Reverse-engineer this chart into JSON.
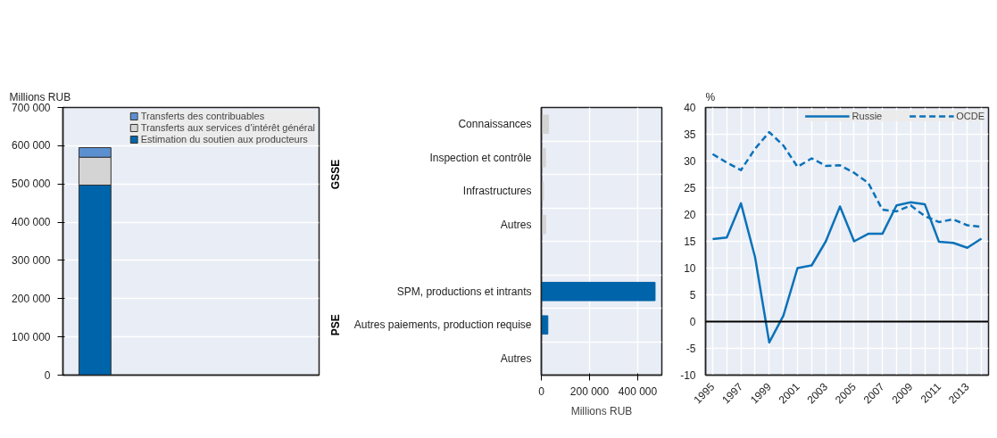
{
  "chart_data": [
    {
      "type": "bar",
      "stacked": true,
      "categories": [
        null
      ],
      "ylabel": "Millions RUB",
      "ylim": [
        0,
        700000
      ],
      "yticks": [
        {
          "value": 0,
          "label": "0"
        },
        {
          "value": 100000,
          "label": "100 000"
        },
        {
          "value": 200000,
          "label": "200 000"
        },
        {
          "value": 300000,
          "label": "300 000"
        },
        {
          "value": 400000,
          "label": "400 000"
        },
        {
          "value": 500000,
          "label": "500 000"
        },
        {
          "value": 600000,
          "label": "600 000"
        },
        {
          "value": 700000,
          "label": "700 000"
        }
      ],
      "grid": "y",
      "legend": "top right",
      "tick_labels": "y",
      "series": [
        {
          "name": "Estimation du soutien aux producteurs",
          "color": "#0064ab",
          "values": [
            497000
          ]
        },
        {
          "name": "Transferts aux services d’intérêt général",
          "color": "#d4d4d4",
          "values": [
            73000
          ]
        },
        {
          "name": "Transferts des contribuables",
          "color": "#5b8fd0",
          "values": [
            25000
          ]
        }
      ]
    },
    {
      "type": "bar",
      "orientation": "horizontal",
      "categories": [
        "Connaissances",
        "Inspection et contrôle",
        "Infrastructures",
        "Autres",
        null,
        "SPM, productions et intrants",
        "Autres paiements, production requise",
        "Autres"
      ],
      "values": [
        30000,
        17000,
        9000,
        18000,
        null,
        472000,
        27000,
        0
      ],
      "colors": [
        "#d4d4d4",
        "#d4d4d4",
        "#d4d4d4",
        "#d4d4d4",
        null,
        "#0064ab",
        "#0064ab",
        "#0064ab"
      ],
      "xlabel": "Millions RUB",
      "xlim": [
        0,
        500000
      ],
      "xticks": [
        {
          "value": 0,
          "label": "0"
        },
        {
          "value": 200000,
          "label": "200 000"
        },
        {
          "value": 400000,
          "label": "400 000"
        }
      ],
      "grid": true,
      "annotations": [
        "GSSE",
        "PSE"
      ]
    },
    {
      "type": "line",
      "ylabel": "%",
      "ylim": [
        -10,
        40
      ],
      "yticks": [
        -10,
        -5,
        0,
        5,
        10,
        15,
        20,
        25,
        30,
        35,
        40
      ],
      "xlim": [
        1994.5,
        2014.5
      ],
      "xticks": [
        1995,
        {
          "value": 1996,
          "label": null
        },
        1997,
        {
          "value": 1998,
          "label": null
        },
        1999,
        {
          "value": 2000,
          "label": null
        },
        2001,
        {
          "value": 2002,
          "label": null
        },
        2003,
        {
          "value": 2004,
          "label": null
        },
        2005,
        {
          "value": 2006,
          "label": null
        },
        2007,
        {
          "value": 2008,
          "label": null
        },
        2009,
        {
          "value": 2010,
          "label": null
        },
        2011,
        {
          "value": 2012,
          "label": null
        },
        2013,
        {
          "value": 2014,
          "label": null
        }
      ],
      "x": [
        1995,
        1996,
        1997,
        1998,
        1999,
        2000,
        2001,
        2002,
        2003,
        2004,
        2005,
        2006,
        2007,
        2008,
        2009,
        2010,
        2011,
        2012,
        2013,
        2014
      ],
      "grid": true,
      "legend": "top right",
      "marker": "none",
      "ref_lines": [
        {
          "axis": "y",
          "value": 0,
          "color": "#000000"
        }
      ],
      "series": [
        {
          "name": "Russie",
          "color": "#0b72b9",
          "line_style": "solid",
          "values": [
            15.4,
            15.7,
            22.1,
            12.0,
            -3.9,
            1.1,
            10.0,
            10.5,
            15.0,
            21.5,
            15.0,
            16.4,
            16.4,
            21.7,
            22.3,
            21.9,
            14.9,
            14.7,
            13.8,
            15.5
          ]
        },
        {
          "name": "OCDE",
          "color": "#0b72b9",
          "line_style": "dashed",
          "values": [
            31.3,
            29.7,
            28.3,
            32.3,
            35.4,
            32.9,
            28.9,
            30.5,
            29.1,
            29.2,
            27.8,
            25.9,
            20.9,
            20.6,
            21.7,
            19.7,
            18.6,
            19.1,
            18.0,
            17.7
          ]
        }
      ]
    }
  ]
}
